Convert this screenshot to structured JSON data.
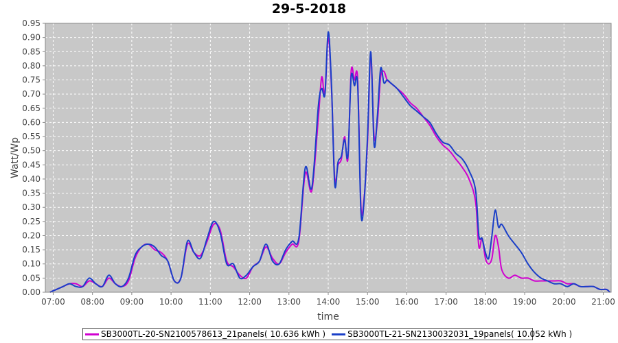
{
  "chart_data": {
    "type": "line",
    "title": "29-5-2018",
    "xlabel": "time",
    "ylabel": "Watt/Wp",
    "ylim": [
      0,
      0.95
    ],
    "yticks": [
      "0.00",
      "0.05",
      "0.10",
      "0.15",
      "0.20",
      "0.25",
      "0.30",
      "0.35",
      "0.40",
      "0.45",
      "0.50",
      "0.55",
      "0.60",
      "0.65",
      "0.70",
      "0.75",
      "0.80",
      "0.85",
      "0.90",
      "0.95"
    ],
    "xrange": [
      "06:48",
      "21:12"
    ],
    "xticks": [
      "07:00",
      "08:00",
      "09:00",
      "10:00",
      "11:00",
      "12:00",
      "13:00",
      "14:00",
      "15:00",
      "16:00",
      "17:00",
      "18:00",
      "19:00",
      "20:00",
      "21:00"
    ],
    "grid": true,
    "legend_position": "bottom",
    "plot_background": "#c8c8c8",
    "series": [
      {
        "name": "SB3000TL-20-SN2100578613_21panels( 10.636 kWh )",
        "color": "#d000d0",
        "x": [
          "06:55",
          "07:05",
          "07:15",
          "07:25",
          "07:35",
          "07:45",
          "07:55",
          "08:05",
          "08:15",
          "08:25",
          "08:35",
          "08:45",
          "08:55",
          "09:05",
          "09:15",
          "09:25",
          "09:35",
          "09:45",
          "09:55",
          "10:05",
          "10:15",
          "10:25",
          "10:35",
          "10:45",
          "10:55",
          "11:05",
          "11:15",
          "11:25",
          "11:35",
          "11:45",
          "11:55",
          "12:05",
          "12:15",
          "12:25",
          "12:35",
          "12:45",
          "12:55",
          "13:05",
          "13:15",
          "13:25",
          "13:35",
          "13:45",
          "13:50",
          "13:55",
          "14:00",
          "14:05",
          "14:10",
          "14:15",
          "14:20",
          "14:25",
          "14:30",
          "14:35",
          "14:40",
          "14:45",
          "14:50",
          "14:55",
          "15:00",
          "15:05",
          "15:10",
          "15:15",
          "15:20",
          "15:25",
          "15:30",
          "15:35",
          "15:45",
          "15:55",
          "16:05",
          "16:15",
          "16:25",
          "16:35",
          "16:45",
          "16:55",
          "17:05",
          "17:15",
          "17:25",
          "17:35",
          "17:45",
          "17:50",
          "17:55",
          "18:00",
          "18:05",
          "18:10",
          "18:15",
          "18:20",
          "18:25",
          "18:35",
          "18:45",
          "18:55",
          "19:05",
          "19:15",
          "19:25",
          "19:35",
          "19:45",
          "19:55",
          "20:05",
          "20:15",
          "20:25",
          "20:35",
          "20:45",
          "20:55",
          "21:05",
          "21:10"
        ],
        "values": [
          0.0,
          0.01,
          0.02,
          0.03,
          0.03,
          0.02,
          0.04,
          0.03,
          0.02,
          0.05,
          0.03,
          0.02,
          0.04,
          0.12,
          0.16,
          0.17,
          0.15,
          0.14,
          0.11,
          0.04,
          0.05,
          0.17,
          0.14,
          0.13,
          0.18,
          0.24,
          0.22,
          0.11,
          0.09,
          0.06,
          0.05,
          0.09,
          0.11,
          0.16,
          0.12,
          0.1,
          0.14,
          0.17,
          0.18,
          0.42,
          0.36,
          0.62,
          0.76,
          0.7,
          0.9,
          0.72,
          0.4,
          0.45,
          0.47,
          0.55,
          0.47,
          0.78,
          0.75,
          0.75,
          0.3,
          0.34,
          0.53,
          0.84,
          0.55,
          0.6,
          0.76,
          0.78,
          0.75,
          0.74,
          0.72,
          0.7,
          0.67,
          0.65,
          0.62,
          0.59,
          0.55,
          0.52,
          0.5,
          0.47,
          0.44,
          0.4,
          0.32,
          0.16,
          0.19,
          0.12,
          0.1,
          0.12,
          0.2,
          0.16,
          0.08,
          0.05,
          0.06,
          0.05,
          0.05,
          0.04,
          0.04,
          0.04,
          0.04,
          0.04,
          0.03,
          0.03,
          0.02,
          0.02,
          0.02,
          0.01,
          0.01,
          0.0
        ]
      },
      {
        "name": "SB3000TL-21-SN2130032031_19panels( 10.052 kWh )",
        "color": "#1a3fc8",
        "x": [
          "06:55",
          "07:05",
          "07:15",
          "07:25",
          "07:35",
          "07:45",
          "07:55",
          "08:05",
          "08:15",
          "08:25",
          "08:35",
          "08:45",
          "08:55",
          "09:05",
          "09:15",
          "09:25",
          "09:35",
          "09:45",
          "09:55",
          "10:05",
          "10:15",
          "10:25",
          "10:35",
          "10:45",
          "10:55",
          "11:05",
          "11:15",
          "11:25",
          "11:35",
          "11:45",
          "11:55",
          "12:05",
          "12:15",
          "12:25",
          "12:35",
          "12:45",
          "12:55",
          "13:05",
          "13:15",
          "13:25",
          "13:35",
          "13:45",
          "13:50",
          "13:55",
          "14:00",
          "14:05",
          "14:10",
          "14:15",
          "14:20",
          "14:25",
          "14:30",
          "14:35",
          "14:40",
          "14:45",
          "14:50",
          "14:55",
          "15:00",
          "15:05",
          "15:10",
          "15:15",
          "15:20",
          "15:25",
          "15:30",
          "15:35",
          "15:45",
          "15:55",
          "16:05",
          "16:15",
          "16:25",
          "16:35",
          "16:45",
          "16:55",
          "17:05",
          "17:15",
          "17:25",
          "17:35",
          "17:45",
          "17:50",
          "17:55",
          "18:00",
          "18:05",
          "18:10",
          "18:15",
          "18:20",
          "18:25",
          "18:35",
          "18:45",
          "18:55",
          "19:05",
          "19:15",
          "19:25",
          "19:35",
          "19:45",
          "19:55",
          "20:05",
          "20:15",
          "20:25",
          "20:35",
          "20:45",
          "20:55",
          "21:05",
          "21:10"
        ],
        "values": [
          0.0,
          0.01,
          0.02,
          0.03,
          0.02,
          0.02,
          0.05,
          0.03,
          0.02,
          0.06,
          0.03,
          0.02,
          0.05,
          0.13,
          0.16,
          0.17,
          0.16,
          0.13,
          0.11,
          0.04,
          0.05,
          0.18,
          0.14,
          0.12,
          0.19,
          0.25,
          0.21,
          0.1,
          0.1,
          0.05,
          0.06,
          0.09,
          0.11,
          0.17,
          0.11,
          0.1,
          0.15,
          0.18,
          0.19,
          0.44,
          0.37,
          0.66,
          0.72,
          0.7,
          0.92,
          0.73,
          0.38,
          0.46,
          0.48,
          0.54,
          0.48,
          0.76,
          0.73,
          0.73,
          0.28,
          0.33,
          0.55,
          0.85,
          0.52,
          0.62,
          0.79,
          0.74,
          0.75,
          0.74,
          0.72,
          0.69,
          0.66,
          0.64,
          0.62,
          0.6,
          0.56,
          0.53,
          0.52,
          0.49,
          0.47,
          0.43,
          0.36,
          0.2,
          0.19,
          0.14,
          0.12,
          0.2,
          0.29,
          0.23,
          0.24,
          0.2,
          0.17,
          0.14,
          0.1,
          0.07,
          0.05,
          0.04,
          0.03,
          0.03,
          0.02,
          0.03,
          0.02,
          0.02,
          0.02,
          0.01,
          0.01,
          0.0
        ]
      }
    ]
  }
}
